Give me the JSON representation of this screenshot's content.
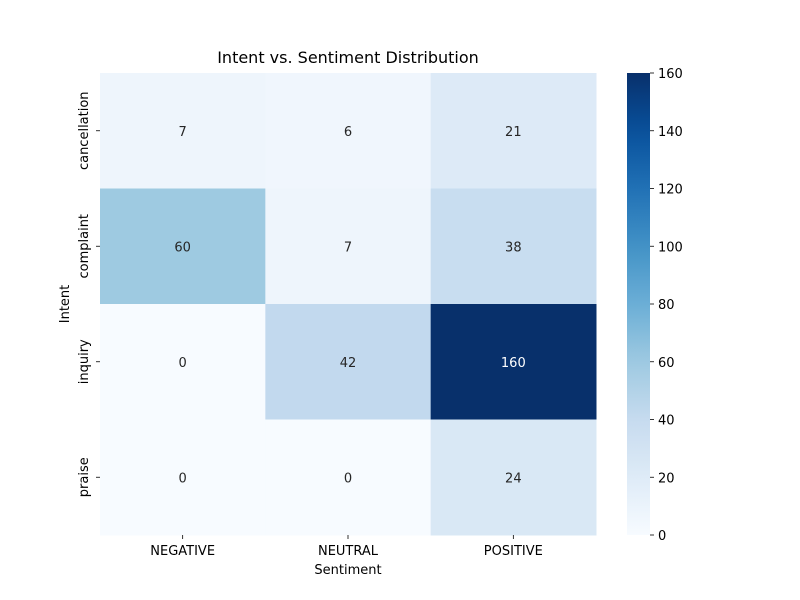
{
  "chart_data": {
    "type": "heatmap",
    "title": "Intent vs. Sentiment Distribution",
    "xlabel": "Sentiment",
    "ylabel": "Intent",
    "x_categories": [
      "NEGATIVE",
      "NEUTRAL",
      "POSITIVE"
    ],
    "y_categories": [
      "cancellation",
      "complaint",
      "inquiry",
      "praise"
    ],
    "values": [
      [
        7,
        6,
        21
      ],
      [
        60,
        7,
        38
      ],
      [
        0,
        42,
        160
      ],
      [
        0,
        0,
        24
      ]
    ],
    "colormap": "Blues",
    "vmin": 0,
    "vmax": 160,
    "colorbar_ticks": [
      0,
      20,
      40,
      60,
      80,
      100,
      120,
      140,
      160
    ],
    "annotated": true,
    "grid": false,
    "legend": "colorbar-right"
  }
}
